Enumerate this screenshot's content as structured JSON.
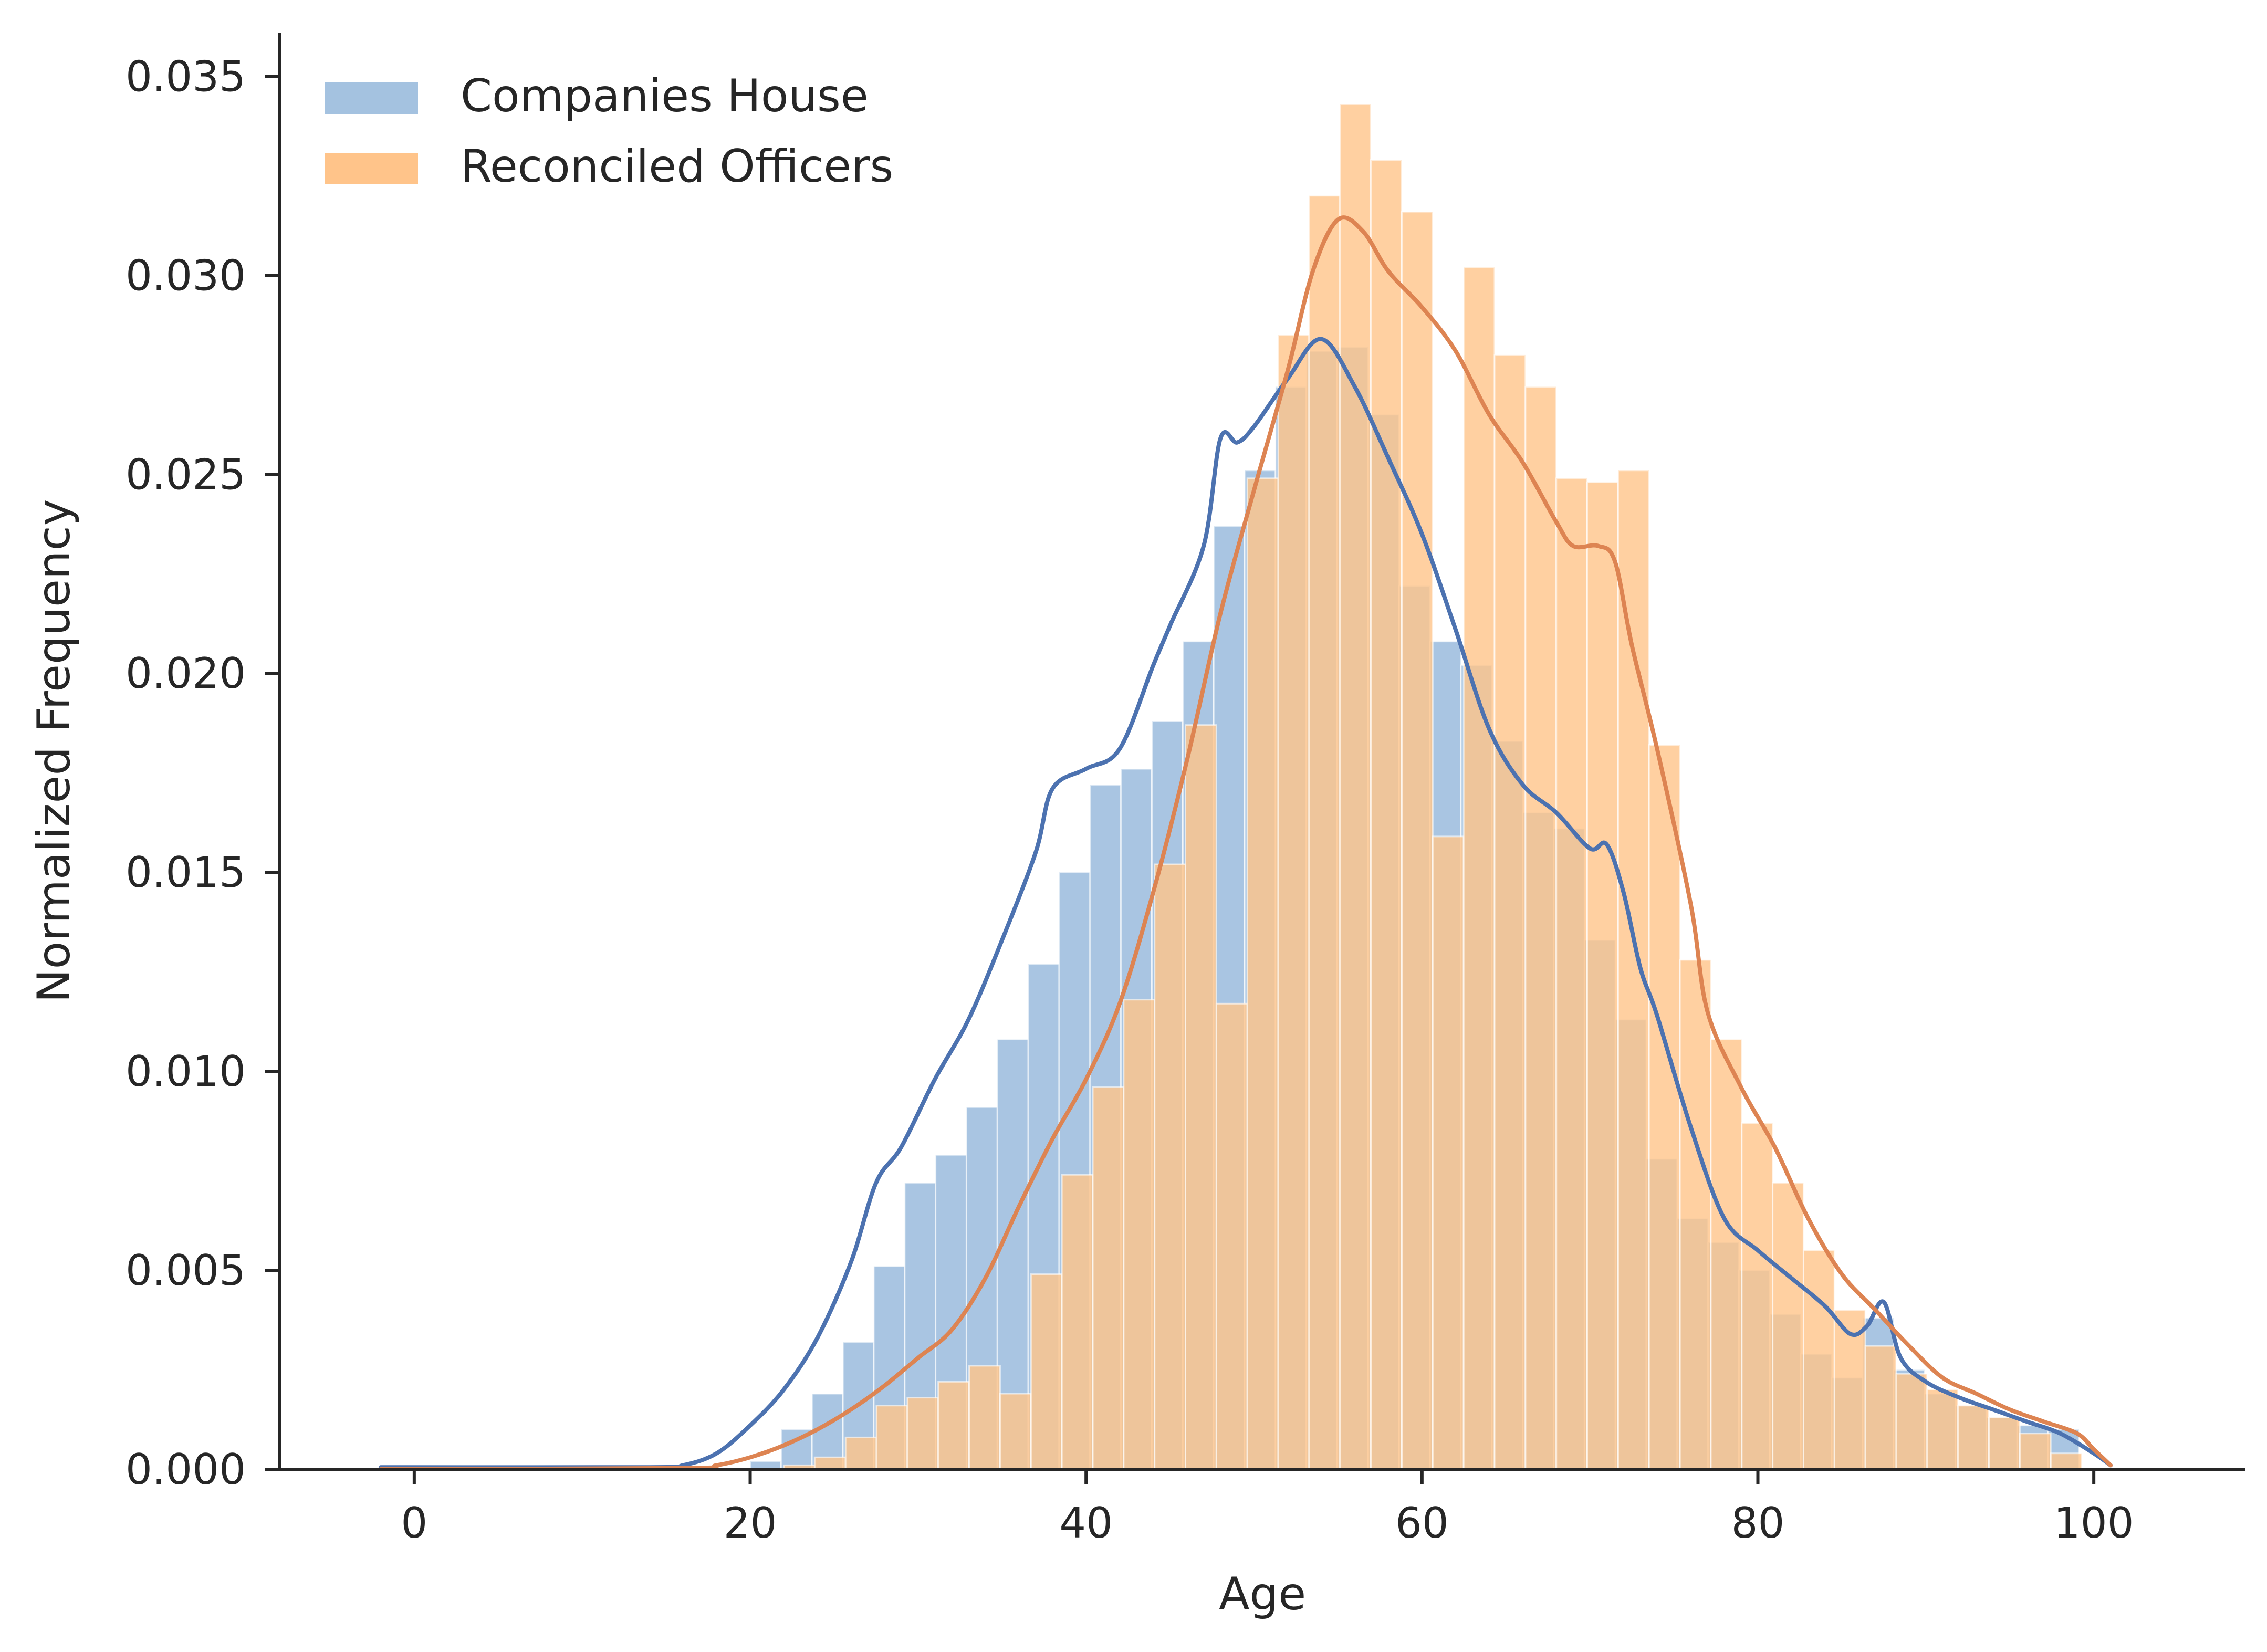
{
  "chart_data": {
    "type": "histogram",
    "title": "",
    "xlabel": "Age",
    "ylabel": "Normalized Frequency",
    "xlim": [
      -8,
      109
    ],
    "ylim": [
      0,
      0.0361
    ],
    "x_ticks": [
      0,
      20,
      40,
      60,
      80,
      100
    ],
    "x_tick_labels": [
      "0",
      "20",
      "40",
      "60",
      "80",
      "100"
    ],
    "y_ticks": [
      0.0,
      0.005,
      0.01,
      0.015,
      0.02,
      0.025,
      0.03,
      0.035
    ],
    "y_tick_labels": [
      "0.000",
      "0.005",
      "0.010",
      "0.015",
      "0.020",
      "0.025",
      "0.030",
      "0.035"
    ],
    "bin_width": 1.84,
    "grid": false,
    "legend": {
      "position": "top-left"
    },
    "series": [
      {
        "name": "Companies House",
        "color": "#a4c2e0",
        "kde_color": "#4c72b0",
        "bins_start": 20.0,
        "bin_width": 1.84,
        "values": [
          0.0002,
          0.001,
          0.0019,
          0.0032,
          0.0051,
          0.0072,
          0.0079,
          0.0091,
          0.0108,
          0.0127,
          0.015,
          0.0172,
          0.0176,
          0.0188,
          0.0208,
          0.0237,
          0.0251,
          0.0272,
          0.0281,
          0.0282,
          0.0265,
          0.0222,
          0.0208,
          0.0202,
          0.0183,
          0.0165,
          0.0161,
          0.0133,
          0.0113,
          0.0078,
          0.0063,
          0.0057,
          0.005,
          0.0039,
          0.0029,
          0.0023,
          0.0038,
          0.0025,
          0.0019,
          0.0016,
          0.0013,
          0.0011,
          0.001
        ],
        "kde": {
          "x": [
            -2,
            14,
            16,
            18,
            20,
            22,
            24,
            26,
            27.5,
            29,
            31,
            33,
            35,
            37,
            38,
            40,
            42,
            44,
            45,
            47,
            48,
            49,
            50,
            52,
            54,
            56,
            58,
            60,
            62,
            64,
            66,
            68,
            70,
            71,
            72,
            73,
            74,
            76,
            78,
            80,
            82,
            84,
            85.5,
            86.5,
            87.5,
            88.5,
            90,
            92,
            94,
            96,
            98,
            100,
            101
          ],
          "y": [
            5e-05,
            5e-05,
            0.0001,
            0.0004,
            0.0011,
            0.002,
            0.0033,
            0.0052,
            0.0072,
            0.0081,
            0.0098,
            0.0113,
            0.0133,
            0.0155,
            0.0171,
            0.0176,
            0.0181,
            0.0202,
            0.0212,
            0.0232,
            0.0259,
            0.0258,
            0.0262,
            0.0274,
            0.0284,
            0.0272,
            0.0254,
            0.0235,
            0.0211,
            0.0186,
            0.0172,
            0.0165,
            0.0156,
            0.0157,
            0.0145,
            0.0126,
            0.0114,
            0.0086,
            0.0063,
            0.0055,
            0.0048,
            0.0041,
            0.0034,
            0.0036,
            0.0042,
            0.0028,
            0.0022,
            0.0018,
            0.0015,
            0.0012,
            0.0009,
            0.0004,
            0.0001
          ]
        }
      },
      {
        "name": "Reconciled Officers",
        "color": "#ffc48a",
        "kde_color": "#dd8452",
        "bins_start": 22.0,
        "bin_width": 1.84,
        "values": [
          0.0001,
          0.0003,
          0.0008,
          0.0016,
          0.0018,
          0.0022,
          0.0026,
          0.0019,
          0.0049,
          0.0074,
          0.0096,
          0.0118,
          0.0152,
          0.0187,
          0.0117,
          0.0249,
          0.0285,
          0.032,
          0.0343,
          0.0329,
          0.0316,
          0.0159,
          0.0302,
          0.028,
          0.0272,
          0.0249,
          0.0248,
          0.0251,
          0.0182,
          0.0128,
          0.0108,
          0.0087,
          0.0072,
          0.0055,
          0.004,
          0.0031,
          0.0024,
          0.002,
          0.0016,
          0.0013,
          0.0009,
          0.0004
        ],
        "kde": {
          "x": [
            -2,
            16,
            18,
            20,
            22,
            24,
            26,
            28,
            30,
            32,
            34,
            36,
            38,
            40,
            42,
            44,
            46,
            48,
            50,
            52,
            53.5,
            55,
            56.5,
            58,
            60,
            62,
            64,
            66,
            68,
            69,
            70.5,
            71.5,
            72.5,
            74,
            76,
            77,
            79,
            81,
            83,
            85,
            87,
            89,
            91,
            93,
            95,
            97,
            99,
            100,
            101
          ],
          "y": [
            0.0,
            3e-05,
            0.0001,
            0.0003,
            0.0006,
            0.001,
            0.0015,
            0.0021,
            0.0028,
            0.0035,
            0.0048,
            0.0066,
            0.0083,
            0.0098,
            0.0117,
            0.0145,
            0.0178,
            0.0215,
            0.0246,
            0.0276,
            0.0301,
            0.0314,
            0.0311,
            0.0301,
            0.0292,
            0.0281,
            0.0265,
            0.0253,
            0.0238,
            0.0232,
            0.0232,
            0.0228,
            0.0207,
            0.0181,
            0.0142,
            0.0115,
            0.0096,
            0.0081,
            0.0063,
            0.0049,
            0.004,
            0.0031,
            0.0023,
            0.0019,
            0.0015,
            0.0012,
            0.0009,
            0.0005,
            0.0001
          ]
        }
      }
    ]
  }
}
